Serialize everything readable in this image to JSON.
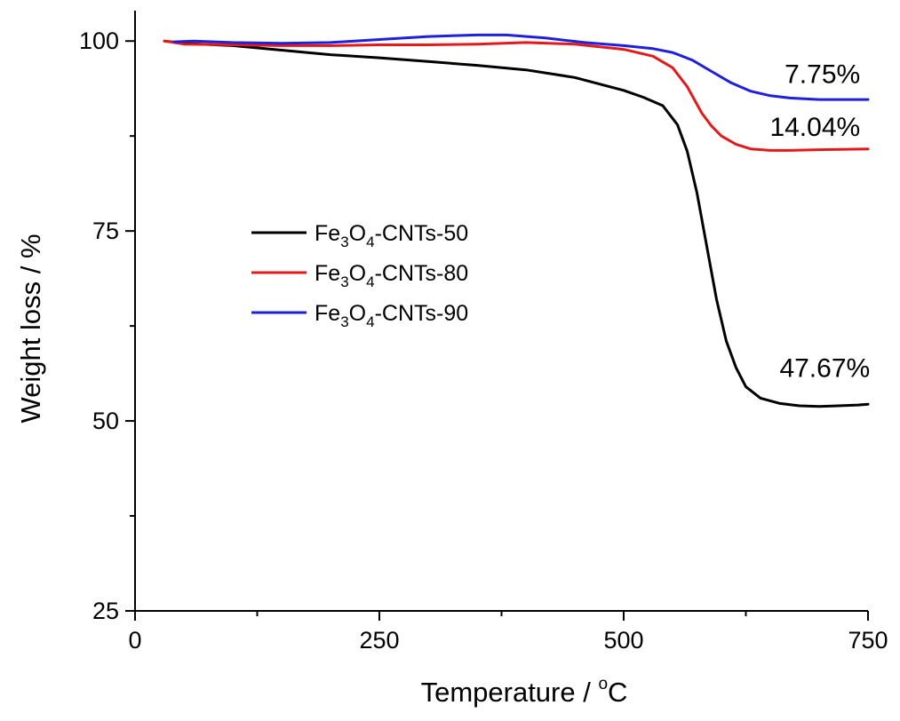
{
  "chart_data": {
    "type": "line",
    "title": "",
    "xlabel": "Temperature / °C",
    "xlabel_main": "Temperature / ",
    "xlabel_sup": "o",
    "xlabel_unit": "C",
    "ylabel": "Weight loss / %",
    "xlim": [
      0,
      750
    ],
    "ylim": [
      25,
      104
    ],
    "x_ticks": [
      0,
      250,
      500,
      750
    ],
    "x_tick_labels": [
      "0",
      "250",
      "500",
      "750"
    ],
    "y_ticks": [
      25,
      50,
      75,
      100
    ],
    "y_tick_labels": [
      "25",
      "50",
      "75",
      "100"
    ],
    "grid": false,
    "legend_position": "middle-left",
    "series": [
      {
        "name": "Fe3O4-CNTs-50",
        "name_parts": [
          "Fe",
          "3",
          "O",
          "4",
          "-CNTs-50"
        ],
        "color": "#000000",
        "x": [
          30,
          50,
          100,
          150,
          200,
          250,
          300,
          350,
          400,
          450,
          500,
          520,
          540,
          555,
          565,
          575,
          585,
          595,
          605,
          615,
          625,
          640,
          660,
          680,
          700,
          720,
          740,
          750
        ],
        "y": [
          100,
          99.7,
          99.4,
          98.8,
          98.2,
          97.8,
          97.3,
          96.8,
          96.2,
          95.2,
          93.5,
          92.6,
          91.5,
          89,
          85.5,
          80,
          73,
          66,
          60.5,
          57,
          54.5,
          53,
          52.3,
          52,
          51.9,
          52,
          52.1,
          52.2
        ]
      },
      {
        "name": "Fe3O4-CNTs-80",
        "name_parts": [
          "Fe",
          "3",
          "O",
          "4",
          "-CNTs-80"
        ],
        "color": "#e31a1c",
        "x": [
          30,
          50,
          100,
          150,
          200,
          250,
          300,
          350,
          400,
          450,
          500,
          530,
          550,
          565,
          580,
          590,
          600,
          615,
          630,
          650,
          670,
          700,
          750
        ],
        "y": [
          100,
          99.6,
          99.5,
          99.4,
          99.4,
          99.5,
          99.5,
          99.6,
          99.8,
          99.6,
          98.9,
          98,
          96.5,
          94,
          90.5,
          88.8,
          87.5,
          86.4,
          85.8,
          85.6,
          85.6,
          85.7,
          85.8
        ]
      },
      {
        "name": "Fe3O4-CNTs-90",
        "name_parts": [
          "Fe",
          "3",
          "O",
          "4",
          "-CNTs-90"
        ],
        "color": "#1f1fdc",
        "x": [
          40,
          60,
          100,
          150,
          200,
          250,
          300,
          350,
          380,
          420,
          460,
          500,
          530,
          550,
          570,
          590,
          610,
          630,
          650,
          670,
          700,
          750
        ],
        "y": [
          99.9,
          100,
          99.8,
          99.7,
          99.8,
          100.2,
          100.6,
          100.8,
          100.8,
          100.4,
          99.8,
          99.4,
          99,
          98.5,
          97.5,
          96,
          94.5,
          93.4,
          92.8,
          92.5,
          92.3,
          92.3
        ]
      }
    ],
    "annotations": [
      {
        "text": "7.75%",
        "x": 742,
        "y": 94.5,
        "anchor": "end"
      },
      {
        "text": "14.04%",
        "x": 742,
        "y": 87.5,
        "anchor": "end"
      },
      {
        "text": "47.67%",
        "x": 752,
        "y": 55.8,
        "anchor": "end"
      }
    ]
  }
}
